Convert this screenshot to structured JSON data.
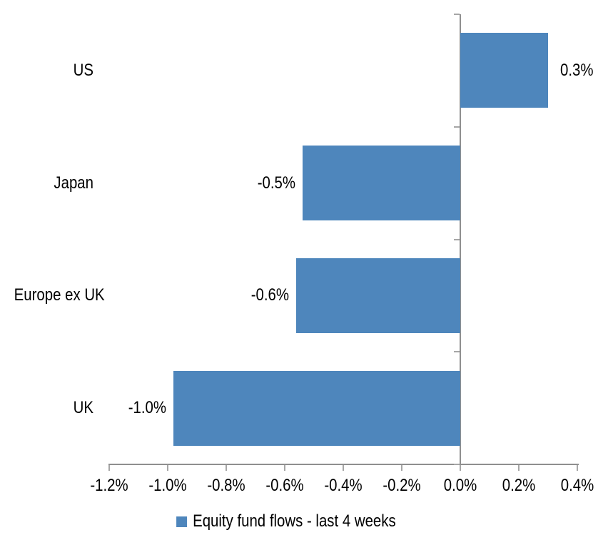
{
  "chart_data": {
    "type": "bar",
    "orientation": "horizontal",
    "title": "",
    "xlabel": "",
    "ylabel": "",
    "categories": [
      "US",
      "Japan",
      "Europe ex UK",
      "UK"
    ],
    "values": [
      0.3,
      -0.54,
      -0.56,
      -0.98
    ],
    "value_labels": [
      "0.3%",
      "-0.5%",
      "-0.6%",
      "-1.0%"
    ],
    "series": [
      {
        "name": "Equity fund flows - last 4 weeks",
        "values": [
          0.3,
          -0.54,
          -0.56,
          -0.98
        ]
      }
    ],
    "x_axis": {
      "min": -1.2,
      "max": 0.4,
      "step": 0.2,
      "tick_labels": [
        "-1.2%",
        "-1.0%",
        "-0.8%",
        "-0.6%",
        "-0.4%",
        "-0.2%",
        "0.0%",
        "0.2%",
        "0.4%"
      ],
      "zero_line_shown": true
    },
    "grid": "off",
    "data_label_position": "outside-end",
    "legend": {
      "position": "bottom-center",
      "items": [
        {
          "label": "Equity fund flows - last 4 weeks",
          "color": "#4E86BC"
        }
      ]
    },
    "colors": {
      "bar": "#4E86BC",
      "axis_line": "#8F8F8F",
      "tick_mark": "#A6A6A6",
      "text": "#000000",
      "background": "#FFFFFF"
    }
  }
}
